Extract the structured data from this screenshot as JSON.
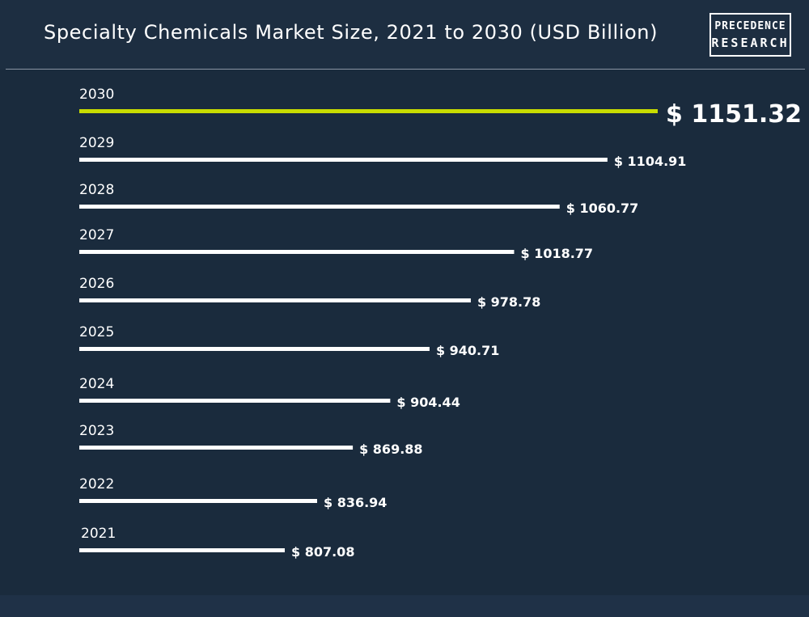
{
  "header": {
    "title": "Specialty Chemicals Market Size, 2021 to 2030 (USD Billion)",
    "logo_line1": "PRECEDENCE",
    "logo_line2": "RESEARCH"
  },
  "colors": {
    "background": "#1d2e41",
    "bar": "#ffffff",
    "highlight_bar": "#c8dc00",
    "text": "#ffffff"
  },
  "chart_data": {
    "type": "bar",
    "orientation": "horizontal",
    "title": "Specialty Chemicals Market Size, 2021 to 2030 (USD Billion)",
    "categories": [
      "2030",
      "2029",
      "2028",
      "2027",
      "2026",
      "2025",
      "2024",
      "2023",
      "2022",
      "2021"
    ],
    "values": [
      1151.32,
      1104.91,
      1060.77,
      1018.77,
      978.78,
      940.71,
      904.44,
      869.88,
      836.94,
      807.08
    ],
    "value_labels": [
      "$ 1151.32",
      "$ 1104.91",
      "$ 1060.77",
      "$ 1018.77",
      "$ 978.78",
      "$ 940.71",
      "$ 904.44",
      "$ 869.88",
      "$ 836.94",
      "$ 807.08"
    ],
    "highlight": "2030",
    "grid": false,
    "legend": "none"
  }
}
